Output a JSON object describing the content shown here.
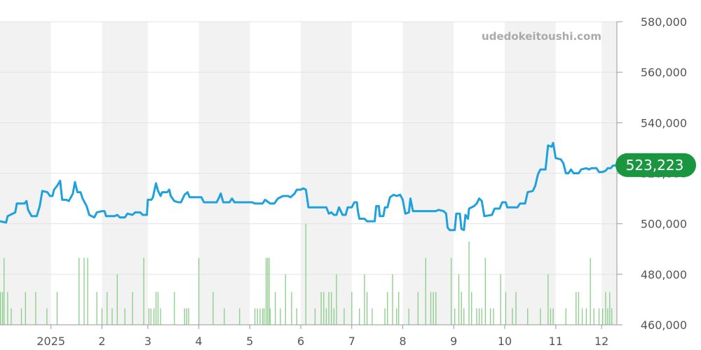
{
  "watermark": "udedokeitoushi.com",
  "chart_data": {
    "type": "line",
    "title": "",
    "xlabel": "",
    "ylabel": "",
    "ylim": [
      460000,
      580000
    ],
    "grid": true,
    "y_ticks": [
      {
        "value": 460000,
        "label": "460,000"
      },
      {
        "value": 480000,
        "label": "480,000"
      },
      {
        "value": 500000,
        "label": "500,000"
      },
      {
        "value": 520000,
        "label": "520,000"
      },
      {
        "value": 540000,
        "label": "540,000"
      },
      {
        "value": 560000,
        "label": "560,000"
      },
      {
        "value": 580000,
        "label": "580,000"
      }
    ],
    "x_ticks": [
      {
        "t": 2.0,
        "label": "2025"
      },
      {
        "t": 3.0,
        "label": "2"
      },
      {
        "t": 3.9,
        "label": "3"
      },
      {
        "t": 4.9,
        "label": "4"
      },
      {
        "t": 5.9,
        "label": "5"
      },
      {
        "t": 6.9,
        "label": "6"
      },
      {
        "t": 7.9,
        "label": "7"
      },
      {
        "t": 8.9,
        "label": "8"
      },
      {
        "t": 9.9,
        "label": "9"
      },
      {
        "t": 10.9,
        "label": "10"
      },
      {
        "t": 11.9,
        "label": "11"
      },
      {
        "t": 12.8,
        "label": "12"
      }
    ],
    "shaded_bands": [
      [
        1.0,
        2.0
      ],
      [
        3.0,
        3.9
      ],
      [
        4.9,
        5.9
      ],
      [
        6.9,
        7.9
      ],
      [
        8.9,
        9.9
      ],
      [
        10.9,
        11.9
      ],
      [
        12.8,
        13.1
      ]
    ],
    "x_range": [
      1.0,
      13.1
    ],
    "current_value": {
      "value": 523223,
      "label": "523,223",
      "color": "#1a9641"
    },
    "series": [
      {
        "color": "#1ea1dc",
        "points": [
          [
            1.0,
            501000
          ],
          [
            1.12,
            500500
          ],
          [
            1.15,
            503000
          ],
          [
            1.3,
            504500
          ],
          [
            1.33,
            508000
          ],
          [
            1.48,
            508000
          ],
          [
            1.52,
            509000
          ],
          [
            1.55,
            505500
          ],
          [
            1.62,
            503000
          ],
          [
            1.72,
            503000
          ],
          [
            1.78,
            507000
          ],
          [
            1.83,
            513000
          ],
          [
            1.93,
            512500
          ],
          [
            1.98,
            511000
          ],
          [
            2.03,
            511000
          ],
          [
            2.06,
            513500
          ],
          [
            2.12,
            515000
          ],
          [
            2.18,
            517000
          ],
          [
            2.22,
            509500
          ],
          [
            2.3,
            509500
          ],
          [
            2.35,
            509000
          ],
          [
            2.43,
            512000
          ],
          [
            2.47,
            516500
          ],
          [
            2.52,
            512500
          ],
          [
            2.58,
            512500
          ],
          [
            2.62,
            510000
          ],
          [
            2.7,
            507000
          ],
          [
            2.75,
            503500
          ],
          [
            2.85,
            502500
          ],
          [
            2.9,
            504500
          ],
          [
            3.0,
            505000
          ],
          [
            3.05,
            505000
          ],
          [
            3.08,
            503000
          ],
          [
            3.25,
            503000
          ],
          [
            3.3,
            503500
          ],
          [
            3.35,
            502500
          ],
          [
            3.45,
            502500
          ],
          [
            3.5,
            504000
          ],
          [
            3.6,
            503500
          ],
          [
            3.65,
            504500
          ],
          [
            3.75,
            504500
          ],
          [
            3.8,
            503500
          ],
          [
            3.88,
            503500
          ],
          [
            3.9,
            509500
          ],
          [
            3.97,
            509500
          ],
          [
            4.0,
            510500
          ],
          [
            4.06,
            516000
          ],
          [
            4.1,
            513000
          ],
          [
            4.15,
            511000
          ],
          [
            4.18,
            512500
          ],
          [
            4.28,
            512500
          ],
          [
            4.32,
            513500
          ],
          [
            4.35,
            511000
          ],
          [
            4.42,
            509000
          ],
          [
            4.5,
            508500
          ],
          [
            4.55,
            508500
          ],
          [
            4.62,
            511500
          ],
          [
            4.68,
            512500
          ],
          [
            4.72,
            510500
          ],
          [
            4.9,
            510500
          ],
          [
            4.95,
            510500
          ],
          [
            5.0,
            508500
          ],
          [
            5.25,
            508500
          ],
          [
            5.3,
            510500
          ],
          [
            5.33,
            512000
          ],
          [
            5.38,
            508500
          ],
          [
            5.5,
            508500
          ],
          [
            5.55,
            510000
          ],
          [
            5.6,
            508500
          ],
          [
            5.95,
            508500
          ],
          [
            6.0,
            508000
          ],
          [
            6.15,
            508000
          ],
          [
            6.2,
            509500
          ],
          [
            6.3,
            508000
          ],
          [
            6.38,
            508000
          ],
          [
            6.45,
            510000
          ],
          [
            6.55,
            511000
          ],
          [
            6.65,
            511000
          ],
          [
            6.7,
            510500
          ],
          [
            6.78,
            512000
          ],
          [
            6.82,
            513500
          ],
          [
            6.9,
            513500
          ],
          [
            6.95,
            514000
          ],
          [
            7.0,
            513500
          ],
          [
            7.05,
            506500
          ],
          [
            7.4,
            506500
          ],
          [
            7.45,
            504000
          ],
          [
            7.5,
            504500
          ],
          [
            7.55,
            503500
          ],
          [
            7.6,
            503500
          ],
          [
            7.65,
            506500
          ],
          [
            7.72,
            503500
          ],
          [
            7.78,
            503500
          ],
          [
            7.82,
            506500
          ],
          [
            7.9,
            506500
          ],
          [
            7.95,
            508500
          ],
          [
            8.0,
            508500
          ],
          [
            8.02,
            505000
          ],
          [
            8.05,
            502000
          ],
          [
            8.15,
            502000
          ],
          [
            8.2,
            501000
          ],
          [
            8.35,
            501000
          ],
          [
            8.38,
            507000
          ],
          [
            8.43,
            507000
          ],
          [
            8.45,
            503000
          ],
          [
            8.52,
            503000
          ],
          [
            8.55,
            506500
          ],
          [
            8.6,
            506500
          ],
          [
            8.65,
            510500
          ],
          [
            8.72,
            511500
          ],
          [
            8.78,
            511000
          ],
          [
            8.85,
            511500
          ],
          [
            8.9,
            509500
          ],
          [
            8.95,
            504000
          ],
          [
            9.02,
            504500
          ],
          [
            9.05,
            510000
          ],
          [
            9.1,
            505000
          ],
          [
            9.45,
            505000
          ],
          [
            9.55,
            505000
          ],
          [
            9.6,
            505500
          ],
          [
            9.7,
            505000
          ],
          [
            9.75,
            504000
          ],
          [
            9.78,
            498500
          ],
          [
            9.82,
            497500
          ],
          [
            9.92,
            497500
          ],
          [
            9.95,
            504000
          ],
          [
            10.02,
            504000
          ],
          [
            10.05,
            498000
          ],
          [
            10.1,
            497500
          ],
          [
            10.13,
            503500
          ],
          [
            10.18,
            502000
          ],
          [
            10.2,
            506000
          ],
          [
            10.3,
            507000
          ],
          [
            10.35,
            508000
          ],
          [
            10.4,
            510000
          ],
          [
            10.45,
            509000
          ],
          [
            10.5,
            503000
          ],
          [
            10.65,
            503500
          ],
          [
            10.7,
            506000
          ],
          [
            10.8,
            506000
          ],
          [
            10.85,
            508500
          ],
          [
            10.92,
            508500
          ],
          [
            10.95,
            506500
          ],
          [
            11.15,
            506500
          ],
          [
            11.2,
            508000
          ],
          [
            11.3,
            508000
          ],
          [
            11.35,
            512500
          ],
          [
            11.45,
            513000
          ],
          [
            11.5,
            515000
          ],
          [
            11.55,
            519500
          ],
          [
            11.6,
            521500
          ],
          [
            11.7,
            521500
          ],
          [
            11.75,
            531000
          ],
          [
            11.82,
            530500
          ],
          [
            11.85,
            532000
          ],
          [
            11.9,
            526000
          ],
          [
            12.0,
            525500
          ],
          [
            12.05,
            524000
          ],
          [
            12.1,
            520000
          ],
          [
            12.15,
            520000
          ],
          [
            12.2,
            521500
          ],
          [
            12.25,
            520000
          ],
          [
            12.35,
            520000
          ],
          [
            12.4,
            521500
          ],
          [
            12.5,
            522000
          ],
          [
            12.55,
            521500
          ],
          [
            12.6,
            522000
          ],
          [
            12.7,
            522000
          ],
          [
            12.75,
            520500
          ],
          [
            12.82,
            520500
          ],
          [
            12.88,
            521000
          ],
          [
            12.92,
            522000
          ],
          [
            12.98,
            522000
          ],
          [
            13.02,
            523000
          ],
          [
            13.1,
            523200
          ]
        ]
      }
    ],
    "volume": {
      "color": "#88cc88",
      "max": 500000,
      "bars": [
        [
          1.01,
          473000
        ],
        [
          1.05,
          473000
        ],
        [
          1.08,
          486500
        ],
        [
          1.15,
          473000
        ],
        [
          1.22,
          466500
        ],
        [
          1.42,
          466500
        ],
        [
          1.5,
          473000
        ],
        [
          1.7,
          473000
        ],
        [
          1.92,
          466500
        ],
        [
          2.12,
          473000
        ],
        [
          2.55,
          486500
        ],
        [
          2.65,
          486500
        ],
        [
          2.72,
          486500
        ],
        [
          2.9,
          473000
        ],
        [
          3.0,
          466500
        ],
        [
          3.1,
          473000
        ],
        [
          3.2,
          466500
        ],
        [
          3.3,
          480000
        ],
        [
          3.45,
          466500
        ],
        [
          3.6,
          473000
        ],
        [
          3.82,
          486500
        ],
        [
          3.92,
          466500
        ],
        [
          3.96,
          466500
        ],
        [
          4.02,
          466500
        ],
        [
          4.06,
          473000
        ],
        [
          4.1,
          473000
        ],
        [
          4.15,
          466500
        ],
        [
          4.42,
          473000
        ],
        [
          4.62,
          466500
        ],
        [
          4.66,
          466500
        ],
        [
          4.7,
          466500
        ],
        [
          4.9,
          486500
        ],
        [
          5.18,
          473000
        ],
        [
          5.4,
          466500
        ],
        [
          5.7,
          466500
        ],
        [
          6.0,
          466500
        ],
        [
          6.05,
          466500
        ],
        [
          6.1,
          466500
        ],
        [
          6.15,
          466500
        ],
        [
          6.18,
          466500
        ],
        [
          6.22,
          486500
        ],
        [
          6.25,
          486500
        ],
        [
          6.28,
          486500
        ],
        [
          6.3,
          466500
        ],
        [
          6.4,
          473000
        ],
        [
          6.5,
          466500
        ],
        [
          6.6,
          480000
        ],
        [
          6.72,
          473000
        ],
        [
          6.82,
          466500
        ],
        [
          7.0,
          500000
        ],
        [
          7.18,
          466500
        ],
        [
          7.3,
          473000
        ],
        [
          7.35,
          473000
        ],
        [
          7.4,
          466500
        ],
        [
          7.45,
          473000
        ],
        [
          7.5,
          473000
        ],
        [
          7.55,
          466500
        ],
        [
          7.6,
          480000
        ],
        [
          7.75,
          466500
        ],
        [
          7.9,
          473000
        ],
        [
          8.05,
          466500
        ],
        [
          8.15,
          480000
        ],
        [
          8.2,
          473000
        ],
        [
          8.3,
          466500
        ],
        [
          8.55,
          466500
        ],
        [
          8.6,
          473000
        ],
        [
          8.7,
          480000
        ],
        [
          8.78,
          466500
        ],
        [
          8.82,
          473000
        ],
        [
          9.02,
          466500
        ],
        [
          9.2,
          473000
        ],
        [
          9.35,
          486500
        ],
        [
          9.45,
          473000
        ],
        [
          9.5,
          473000
        ],
        [
          9.55,
          473000
        ],
        [
          9.85,
          486500
        ],
        [
          9.92,
          466500
        ],
        [
          10.0,
          480000
        ],
        [
          10.05,
          473000
        ],
        [
          10.1,
          466500
        ],
        [
          10.2,
          493000
        ],
        [
          10.25,
          473000
        ],
        [
          10.35,
          466500
        ],
        [
          10.4,
          466500
        ],
        [
          10.45,
          466500
        ],
        [
          10.52,
          486500
        ],
        [
          10.62,
          466500
        ],
        [
          10.68,
          466500
        ],
        [
          10.82,
          480000
        ],
        [
          10.92,
          473000
        ],
        [
          11.05,
          466500
        ],
        [
          11.12,
          473000
        ],
        [
          11.35,
          466500
        ],
        [
          11.6,
          466500
        ],
        [
          11.75,
          480000
        ],
        [
          11.8,
          466500
        ],
        [
          11.85,
          466500
        ],
        [
          12.1,
          466500
        ],
        [
          12.3,
          473000
        ],
        [
          12.35,
          473000
        ],
        [
          12.42,
          466500
        ],
        [
          12.5,
          466500
        ],
        [
          12.58,
          486500
        ],
        [
          12.65,
          466500
        ],
        [
          12.75,
          466500
        ],
        [
          12.82,
          466500
        ],
        [
          12.88,
          473000
        ],
        [
          12.92,
          466500
        ],
        [
          12.96,
          473000
        ],
        [
          13.0,
          466500
        ]
      ]
    }
  }
}
